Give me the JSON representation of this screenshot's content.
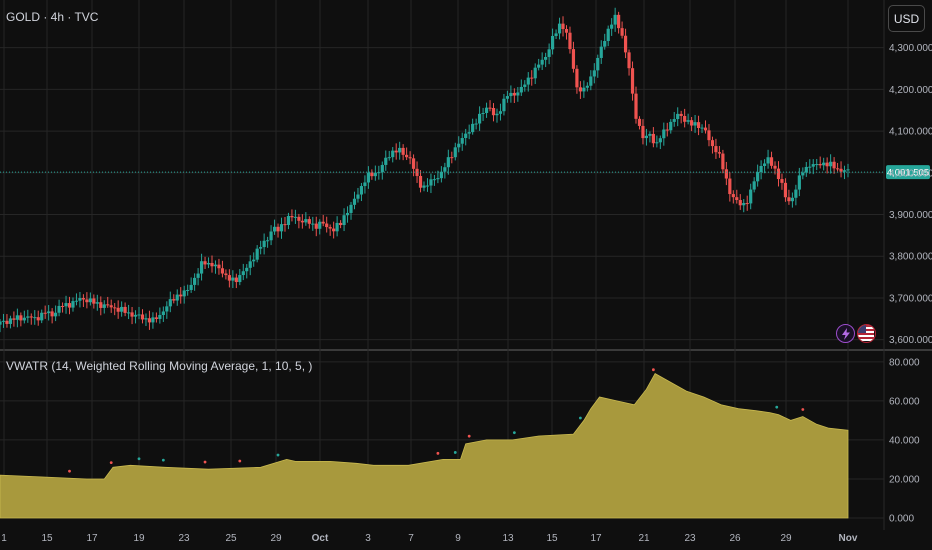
{
  "header": {
    "symbol_title": "GOLD · 4h · TVC",
    "currency_label": "USD"
  },
  "indicator": {
    "title": "VWATR (14, Weighted Rolling Moving Average, 1, 10, 5, )"
  },
  "colors": {
    "background": "#0f0f0f",
    "grid": "#262626",
    "up_candle": "#26a69a",
    "down_candle": "#ef5350",
    "area_fill": "#a8993d",
    "current_price": "#26a69a",
    "axis_text": "#b2b5be"
  },
  "icons": [
    "lightning-icon",
    "us-flag-icon"
  ],
  "chart_data": [
    {
      "type": "candlestick",
      "title": "GOLD · 4h · TVC",
      "x_labels": [
        "1",
        "15",
        "17",
        "19",
        "23",
        "25",
        "29",
        "Oct",
        "3",
        "7",
        "9",
        "13",
        "15",
        "17",
        "21",
        "23",
        "26",
        "29",
        "Nov"
      ],
      "y_ticks": [
        "3,600.000",
        "3,700.000",
        "3,800.000",
        "3,900.000",
        "4,000.000",
        "4,100.000",
        "4,200.000",
        "4,300.000"
      ],
      "ylim": [
        3580,
        4395
      ],
      "current_price": 4001.505,
      "current_price_label": "4,001.505",
      "grid": true,
      "close_path": [
        [
          0,
          3640
        ],
        [
          8,
          3650
        ],
        [
          12,
          3652
        ],
        [
          15,
          3655
        ],
        [
          20,
          3650
        ],
        [
          26,
          3665
        ],
        [
          30,
          3660
        ],
        [
          35,
          3680
        ],
        [
          42,
          3688
        ],
        [
          47,
          3700
        ],
        [
          53,
          3690
        ],
        [
          57,
          3685
        ],
        [
          61,
          3680
        ],
        [
          65,
          3678
        ],
        [
          70,
          3670
        ],
        [
          75,
          3662
        ],
        [
          80,
          3655
        ],
        [
          84,
          3650
        ],
        [
          88,
          3645
        ],
        [
          91,
          3655
        ],
        [
          96,
          3680
        ],
        [
          101,
          3705
        ],
        [
          107,
          3712
        ],
        [
          110,
          3735
        ],
        [
          114,
          3760
        ],
        [
          117,
          3790
        ],
        [
          121,
          3780
        ],
        [
          124,
          3775
        ],
        [
          128,
          3765
        ],
        [
          131,
          3745
        ],
        [
          135,
          3740
        ],
        [
          139,
          3760
        ],
        [
          142,
          3770
        ],
        [
          146,
          3800
        ],
        [
          149,
          3820
        ],
        [
          153,
          3835
        ],
        [
          157,
          3870
        ],
        [
          160,
          3860
        ],
        [
          163,
          3880
        ],
        [
          167,
          3895
        ],
        [
          171,
          3890
        ],
        [
          174,
          3885
        ],
        [
          178,
          3880
        ],
        [
          181,
          3872
        ],
        [
          185,
          3880
        ],
        [
          188,
          3870
        ],
        [
          192,
          3865
        ],
        [
          196,
          3878
        ],
        [
          199,
          3905
        ],
        [
          203,
          3925
        ],
        [
          207,
          3960
        ],
        [
          211,
          3990
        ],
        [
          214,
          3995
        ],
        [
          218,
          4005
        ],
        [
          222,
          4030
        ],
        [
          225,
          4050
        ],
        [
          229,
          4055
        ],
        [
          232,
          4045
        ],
        [
          236,
          4035
        ],
        [
          240,
          3985
        ],
        [
          243,
          3965
        ],
        [
          247,
          3975
        ],
        [
          250,
          3985
        ],
        [
          254,
          4000
        ],
        [
          258,
          4030
        ],
        [
          262,
          4060
        ],
        [
          266,
          4080
        ],
        [
          270,
          4105
        ],
        [
          274,
          4120
        ],
        [
          278,
          4150
        ],
        [
          281,
          4160
        ],
        [
          285,
          4130
        ],
        [
          289,
          4165
        ],
        [
          292,
          4185
        ],
        [
          296,
          4190
        ],
        [
          300,
          4200
        ],
        [
          303,
          4220
        ],
        [
          307,
          4240
        ],
        [
          311,
          4265
        ],
        [
          314,
          4280
        ],
        [
          318,
          4320
        ],
        [
          322,
          4355
        ],
        [
          325,
          4350
        ],
        [
          329,
          4275
        ],
        [
          332,
          4205
        ],
        [
          336,
          4195
        ],
        [
          340,
          4230
        ],
        [
          343,
          4260
        ],
        [
          347,
          4310
        ],
        [
          351,
          4355
        ],
        [
          354,
          4370
        ],
        [
          358,
          4330
        ],
        [
          362,
          4250
        ],
        [
          365,
          4150
        ],
        [
          368,
          4110
        ],
        [
          371,
          4075
        ],
        [
          374,
          4095
        ],
        [
          377,
          4065
        ],
        [
          381,
          4090
        ],
        [
          384,
          4110
        ],
        [
          388,
          4130
        ],
        [
          391,
          4140
        ],
        [
          395,
          4125
        ],
        [
          398,
          4115
        ],
        [
          402,
          4115
        ],
        [
          406,
          4100
        ],
        [
          409,
          4065
        ],
        [
          413,
          4055
        ],
        [
          417,
          3995
        ],
        [
          420,
          3955
        ],
        [
          424,
          3930
        ],
        [
          427,
          3920
        ],
        [
          431,
          3940
        ],
        [
          434,
          3980
        ],
        [
          438,
          4020
        ],
        [
          442,
          4030
        ],
        [
          445,
          4015
        ],
        [
          449,
          3985
        ],
        [
          452,
          3940
        ],
        [
          455,
          3930
        ],
        [
          459,
          3975
        ],
        [
          462,
          4005
        ],
        [
          466,
          4020
        ],
        [
          469,
          4015
        ],
        [
          473,
          4025
        ],
        [
          476,
          4020
        ],
        [
          480,
          4015
        ],
        [
          484,
          4005
        ],
        [
          488,
          4003
        ]
      ]
    },
    {
      "type": "area",
      "title": "VWATR (14, Weighted Rolling Moving Average, 1, 10, 5, )",
      "y_ticks": [
        "0.000",
        "20.000",
        "40.000",
        "60.000",
        "80.000"
      ],
      "ylim": [
        0,
        83
      ],
      "series": [
        {
          "values": [
            [
              0,
              22
            ],
            [
              25,
              21
            ],
            [
              50,
              20
            ],
            [
              60,
              20
            ],
            [
              65,
              26
            ],
            [
              75,
              27
            ],
            [
              95,
              26
            ],
            [
              120,
              25
            ],
            [
              150,
              26
            ],
            [
              165,
              30
            ],
            [
              170,
              29
            ],
            [
              190,
              29
            ],
            [
              205,
              28
            ],
            [
              215,
              27
            ],
            [
              235,
              27
            ],
            [
              255,
              30
            ],
            [
              265,
              30
            ],
            [
              268,
              38
            ],
            [
              280,
              40
            ],
            [
              295,
              40
            ],
            [
              310,
              42
            ],
            [
              330,
              43
            ],
            [
              336,
              50
            ],
            [
              340,
              56
            ],
            [
              345,
              62
            ],
            [
              355,
              60
            ],
            [
              365,
              58
            ],
            [
              372,
              66
            ],
            [
              377,
              74
            ],
            [
              385,
              70
            ],
            [
              395,
              65
            ],
            [
              405,
              62
            ],
            [
              415,
              58
            ],
            [
              425,
              56
            ],
            [
              435,
              55
            ],
            [
              443,
              54
            ],
            [
              448,
              53
            ],
            [
              455,
              50
            ],
            [
              462,
              52
            ],
            [
              470,
              48
            ],
            [
              477,
              46
            ],
            [
              488,
              45
            ]
          ]
        }
      ]
    }
  ]
}
